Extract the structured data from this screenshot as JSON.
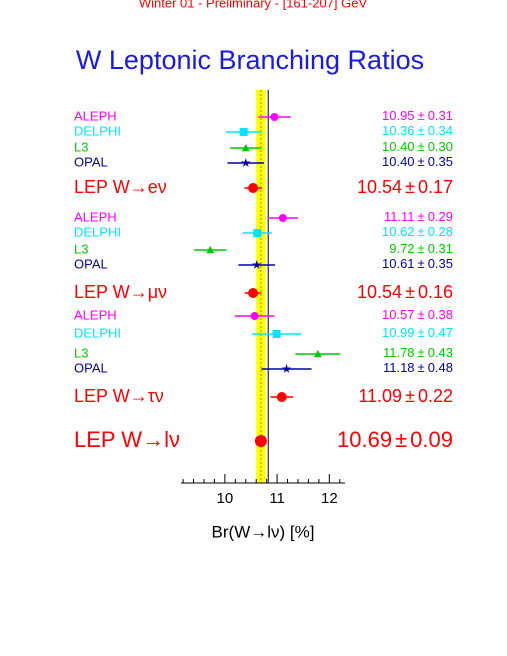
{
  "chart_data": {
    "type": "errorbar",
    "subtitle": "Winter 01 - Preliminary - [161-207] GeV",
    "title": "W Leptonic Branching Ratios",
    "x_label": "Br(W→lν) [%]",
    "plus_minus": "±",
    "xlim": [
      9.16,
      12.3
    ],
    "xticks": [
      10,
      11,
      12
    ],
    "minor_xticks": [
      9.2,
      9.4,
      9.6,
      9.8,
      10.2,
      10.4,
      10.6,
      10.8,
      11.2,
      11.4,
      11.6,
      11.8,
      12.2
    ],
    "band": {
      "center": 10.69,
      "half_width": 0.09,
      "color": "#ffff00"
    },
    "reference_value": 10.83,
    "rows": [
      {
        "label": "ALEPH",
        "value": 10.95,
        "error": 0.31,
        "value_label": "10.95",
        "error_label": "0.31",
        "color": "#ff00ff",
        "marker": "circle",
        "size": "small"
      },
      {
        "label": "DELPHI",
        "value": 10.36,
        "error": 0.34,
        "value_label": "10.36",
        "error_label": "0.34",
        "color": "#00e5ff",
        "marker": "square",
        "size": "small"
      },
      {
        "label": "L3",
        "value": 10.4,
        "error": 0.3,
        "value_label": "10.40",
        "error_label": "0.30",
        "color": "#00cc00",
        "marker": "triangle",
        "size": "small"
      },
      {
        "label": "OPAL",
        "value": 10.4,
        "error": 0.35,
        "value_label": "10.40",
        "error_label": "0.35",
        "color": "#0000b0",
        "marker": "star",
        "size": "small"
      },
      {
        "label": "LEP W→eν",
        "value": 10.54,
        "error": 0.17,
        "value_label": "10.54",
        "error_label": "0.17",
        "color": "#ff0000",
        "marker": "circle",
        "size": "medium"
      },
      {
        "label": "ALEPH",
        "value": 11.11,
        "error": 0.29,
        "value_label": "11.11",
        "error_label": "0.29",
        "color": "#ff00ff",
        "marker": "circle",
        "size": "small"
      },
      {
        "label": "DELPHI",
        "value": 10.62,
        "error": 0.28,
        "value_label": "10.62",
        "error_label": "0.28",
        "color": "#00e5ff",
        "marker": "square",
        "size": "small"
      },
      {
        "label": "L3",
        "value": 9.72,
        "error": 0.31,
        "value_label": "9.72",
        "error_label": "0.31",
        "color": "#00cc00",
        "marker": "triangle",
        "size": "small"
      },
      {
        "label": "OPAL",
        "value": 10.61,
        "error": 0.35,
        "value_label": "10.61",
        "error_label": "0.35",
        "color": "#0000b0",
        "marker": "star",
        "size": "small"
      },
      {
        "label": "LEP W→μν",
        "value": 10.54,
        "error": 0.16,
        "value_label": "10.54",
        "error_label": "0.16",
        "color": "#ff0000",
        "marker": "circle",
        "size": "medium"
      },
      {
        "label": "ALEPH",
        "value": 10.57,
        "error": 0.38,
        "value_label": "10.57",
        "error_label": "0.38",
        "color": "#ff00ff",
        "marker": "circle",
        "size": "small"
      },
      {
        "label": "DELPHI",
        "value": 10.99,
        "error": 0.47,
        "value_label": "10.99",
        "error_label": "0.47",
        "color": "#00e5ff",
        "marker": "square",
        "size": "small"
      },
      {
        "label": "L3",
        "value": 11.78,
        "error": 0.43,
        "value_label": "11.78",
        "error_label": "0.43",
        "color": "#00cc00",
        "marker": "triangle",
        "size": "small"
      },
      {
        "label": "OPAL",
        "value": 11.18,
        "error": 0.48,
        "value_label": "11.18",
        "error_label": "0.48",
        "color": "#0000b0",
        "marker": "star",
        "size": "small"
      },
      {
        "label": "LEP W→τν",
        "value": 11.09,
        "error": 0.22,
        "value_label": "11.09",
        "error_label": "0.22",
        "color": "#ff0000",
        "marker": "circle",
        "size": "medium"
      },
      {
        "label": "LEP W→lν",
        "value": 10.69,
        "error": 0.09,
        "value_label": "10.69",
        "error_label": "0.09",
        "color": "#ff0000",
        "marker": "circle",
        "size": "large"
      }
    ]
  }
}
